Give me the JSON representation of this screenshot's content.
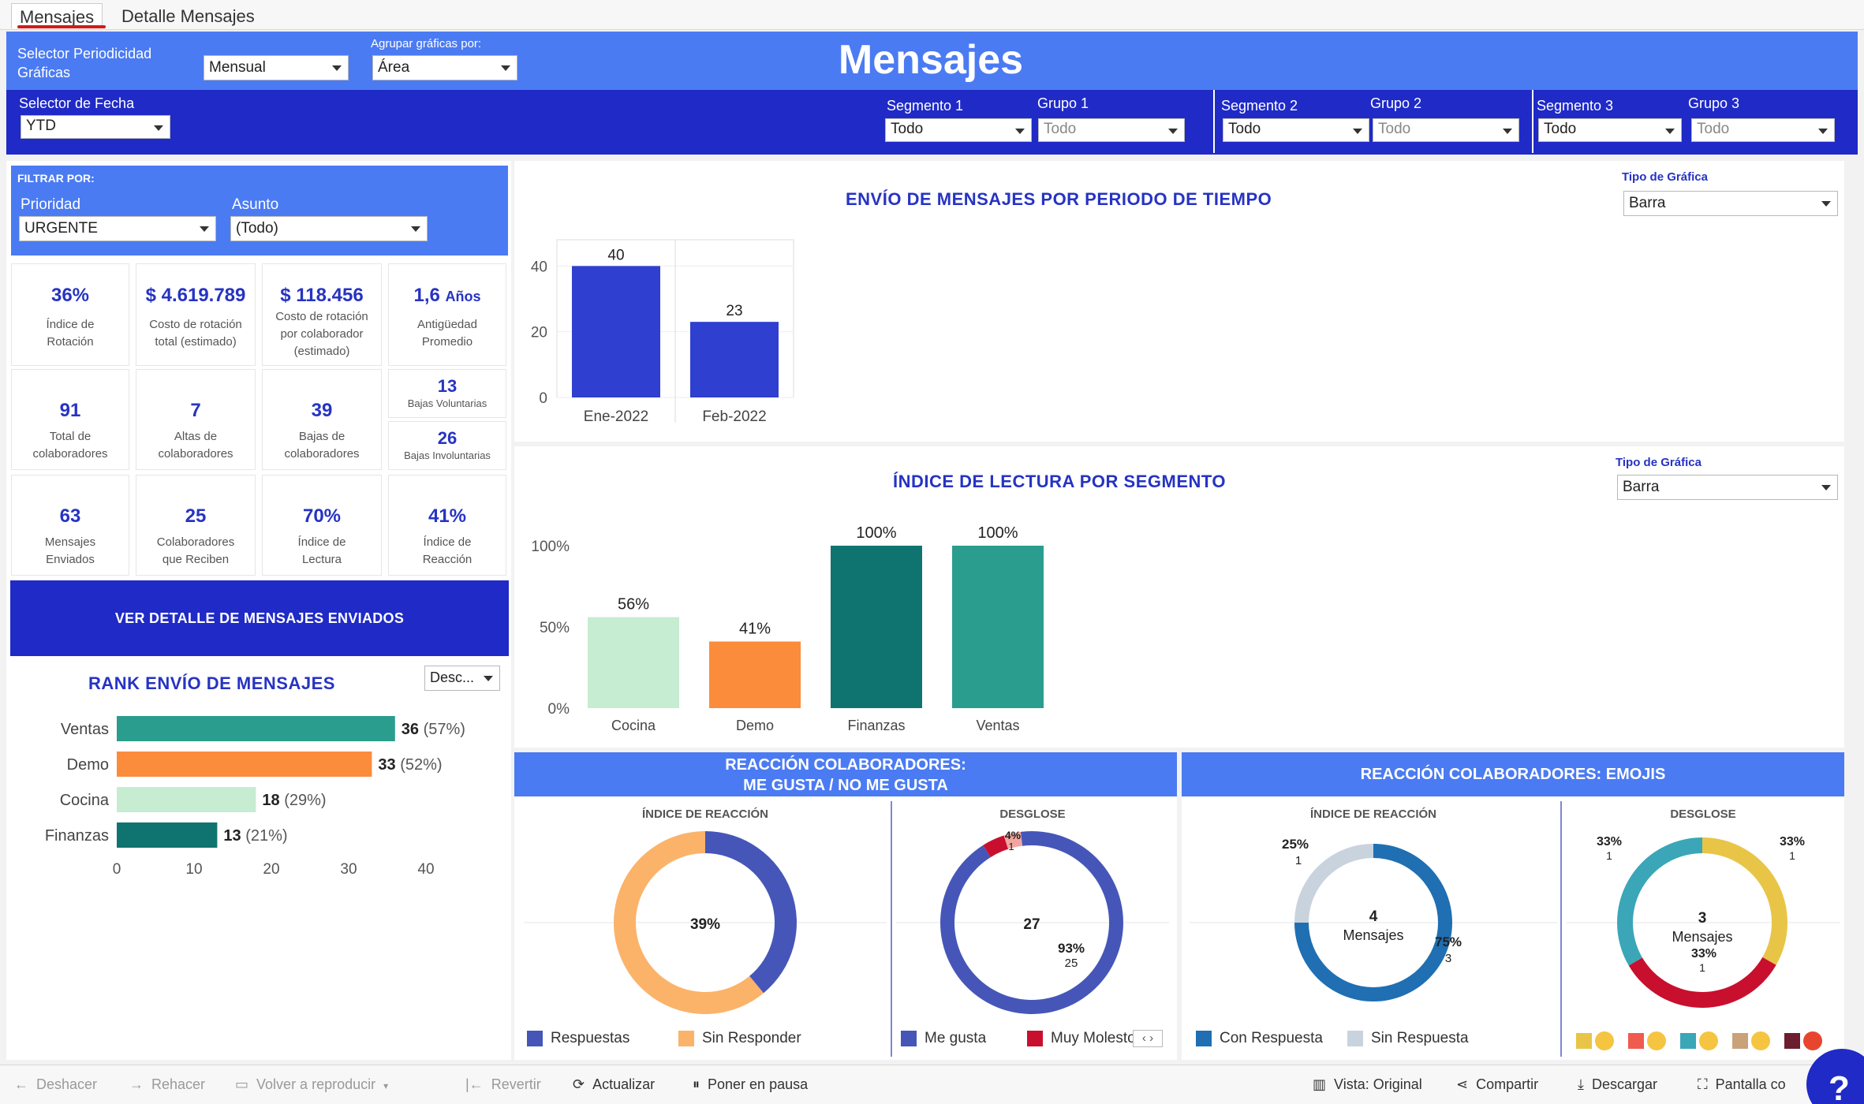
{
  "tabs": [
    {
      "label": "Mensajes",
      "active": true
    },
    {
      "label": "Detalle Mensajes",
      "active": false
    }
  ],
  "header": {
    "periodicidad_label": "Selector Periodicidad Gráficas",
    "periodicidad_value": "Mensual",
    "agrupar_label": "Agrupar gráficas por:",
    "agrupar_value": "Área",
    "title": "Mensajes",
    "fecha_label": "Selector de Fecha",
    "fecha_value": "YTD",
    "segmento1_label": "Segmento 1",
    "segmento1_value": "Todo",
    "grupo1_label": "Grupo 1",
    "grupo1_value": "Todo",
    "segmento2_label": "Segmento 2",
    "segmento2_value": "Todo",
    "grupo2_label": "Grupo 2",
    "grupo2_value": "Todo",
    "segmento3_label": "Segmento 3",
    "segmento3_value": "Todo",
    "grupo3_label": "Grupo 3",
    "grupo3_value": "Todo"
  },
  "filters": {
    "title": "FILTRAR POR:",
    "prioridad_label": "Prioridad",
    "prioridad_value": "URGENTE",
    "asunto_label": "Asunto",
    "asunto_value": "(Todo)"
  },
  "kpis": {
    "rotacion": {
      "value": "36%",
      "label1": "Índice de",
      "label2": "Rotación"
    },
    "costo_total": {
      "value": "$ 4.619.789",
      "label1": "Costo de rotación",
      "label2": "total (estimado)"
    },
    "costo_colab": {
      "value": "$ 118.456",
      "label1": "Costo de rotación",
      "label2": "por colaborador",
      "label3": "(estimado)"
    },
    "antiguedad": {
      "value": "1,6",
      "unit": "Años",
      "label1": "Antigüedad",
      "label2": "Promedio"
    },
    "total_colab": {
      "value": "91",
      "label1": "Total de",
      "label2": "colaboradores"
    },
    "altas": {
      "value": "7",
      "label1": "Altas de",
      "label2": "colaboradores"
    },
    "bajas": {
      "value": "39",
      "label1": "Bajas de",
      "label2": "colaboradores"
    },
    "bajas_vol": {
      "value": "13",
      "label": "Bajas Voluntarias"
    },
    "bajas_invol": {
      "value": "26",
      "label": "Bajas Involuntarias"
    },
    "enviados": {
      "value": "63",
      "label1": "Mensajes",
      "label2": "Enviados"
    },
    "reciben": {
      "value": "25",
      "label1": "Colaboradores",
      "label2": "que Reciben"
    },
    "lectura": {
      "value": "70%",
      "label1": "Índice de",
      "label2": "Lectura"
    },
    "reaccion": {
      "value": "41%",
      "label1": "Índice de",
      "label2": "Reacción"
    }
  },
  "detail_button": "VER DETALLE DE MENSAJES ENVIADOS",
  "rank": {
    "title": "RANK ENVÍO DE MENSAJES",
    "sort_value": "Desc..."
  },
  "envio": {
    "title": "ENVÍO DE MENSAJES POR PERIODO DE TIEMPO",
    "tipo_label": "Tipo de Gráfica",
    "tipo_value": "Barra"
  },
  "lectura": {
    "title": "ÍNDICE DE LECTURA POR SEGMENTO",
    "tipo_label": "Tipo de Gráfica",
    "tipo_value": "Barra"
  },
  "reaccion_like": {
    "title1": "REACCIÓN COLABORADORES:",
    "title2": "ME GUSTA / NO ME GUSTA",
    "indice_label": "ÍNDICE DE REACCIÓN",
    "desglose_label": "DESGLOSE",
    "center_pct": "39%",
    "desglose_center": "27",
    "desglose_pct": "93%",
    "desglose_count": "25",
    "desglose_small_pct": "4%",
    "desglose_small_count": "1",
    "legend": [
      "Respuestas",
      "Sin Responder",
      "Me gusta",
      "Muy Molesto"
    ]
  },
  "reaccion_emoji": {
    "title": "REACCIÓN COLABORADORES: EMOJIS",
    "indice_label": "ÍNDICE DE REACCIÓN",
    "desglose_label": "DESGLOSE",
    "indice_center_num": "4",
    "indice_center_txt": "Mensajes",
    "indice_a_pct": "25%",
    "indice_a_n": "1",
    "indice_b_pct": "75%",
    "indice_b_n": "3",
    "desglose_center_num": "3",
    "desglose_center_txt": "Mensajes",
    "d_left_pct": "33%",
    "d_left_n": "1",
    "d_right_pct": "33%",
    "d_right_n": "1",
    "d_bottom_pct": "33%",
    "d_bottom_n": "1",
    "legend": [
      "Con Respuesta",
      "Sin Respuesta"
    ]
  },
  "toolbar": {
    "deshacer": "Deshacer",
    "rehacer": "Rehacer",
    "volver": "Volver a reproducir",
    "revertir": "Revertir",
    "actualizar": "Actualizar",
    "pausa": "Poner en pausa",
    "vista": "Vista: Original",
    "compartir": "Compartir",
    "descargar": "Descargar",
    "pantalla": "Pantalla co",
    "help": "?"
  },
  "colors": {
    "dark_blue": "#1f2ac7",
    "mid_blue": "#4b7bf2",
    "teal": "#2a9d8f",
    "orange": "#fb8c3c",
    "light_green": "#c6ecd2",
    "dark_teal": "#0f7470"
  },
  "chart_data": [
    {
      "type": "bar",
      "title": "ENVÍO DE MENSAJES POR PERIODO DE TIEMPO",
      "categories": [
        "Ene-2022",
        "Feb-2022"
      ],
      "values": [
        40,
        23
      ],
      "ylim": [
        0,
        48
      ],
      "yticks": [
        0,
        20,
        40
      ]
    },
    {
      "type": "bar",
      "title": "ÍNDICE DE LECTURA POR SEGMENTO",
      "categories": [
        "Cocina",
        "Demo",
        "Finanzas",
        "Ventas"
      ],
      "values": [
        56,
        41,
        100,
        100
      ],
      "labels": [
        "56%",
        "41%",
        "100%",
        "100%"
      ],
      "yticks": [
        "0%",
        "50%",
        "100%"
      ],
      "colors": [
        "#c6ecd2",
        "#fb8c3c",
        "#0f7470",
        "#2a9d8f"
      ]
    },
    {
      "type": "bar",
      "orientation": "horizontal",
      "title": "RANK ENVÍO DE MENSAJES",
      "categories": [
        "Ventas",
        "Demo",
        "Cocina",
        "Finanzas"
      ],
      "values": [
        36,
        33,
        18,
        13
      ],
      "pct": [
        "(57%)",
        "(52%)",
        "(29%)",
        "(21%)"
      ],
      "xticks": [
        0,
        10,
        20,
        30,
        40
      ],
      "colors": [
        "#2a9d8f",
        "#fb8c3c",
        "#c6ecd2",
        "#0f7470"
      ]
    },
    {
      "type": "pie",
      "title": "ÍNDICE DE REACCIÓN",
      "slices": [
        {
          "name": "Respuestas",
          "value": 39,
          "color": "#4656b8"
        },
        {
          "name": "Sin Responder",
          "value": 61,
          "color": "#fbb36a"
        }
      ]
    },
    {
      "type": "pie",
      "title": "DESGLOSE",
      "slices": [
        {
          "name": "Me gusta",
          "value": 93,
          "color": "#4656b8"
        },
        {
          "name": "Muy Molesto",
          "value": 4,
          "color": "#c8102e"
        },
        {
          "name": "",
          "value": 3,
          "color": "#f2a6a0"
        }
      ]
    },
    {
      "type": "pie",
      "title": "ÍNDICE DE REACCIÓN",
      "slices": [
        {
          "name": "Con Respuesta",
          "value": 75,
          "color": "#1f6fb2"
        },
        {
          "name": "Sin Respuesta",
          "value": 25,
          "color": "#c9d3de"
        }
      ]
    },
    {
      "type": "pie",
      "title": "DESGLOSE",
      "slices": [
        {
          "name": "",
          "value": 33.3,
          "color": "#e8c547"
        },
        {
          "name": "",
          "value": 33.3,
          "color": "#c8102e"
        },
        {
          "name": "",
          "value": 33.4,
          "color": "#3aa6b8"
        }
      ]
    }
  ]
}
